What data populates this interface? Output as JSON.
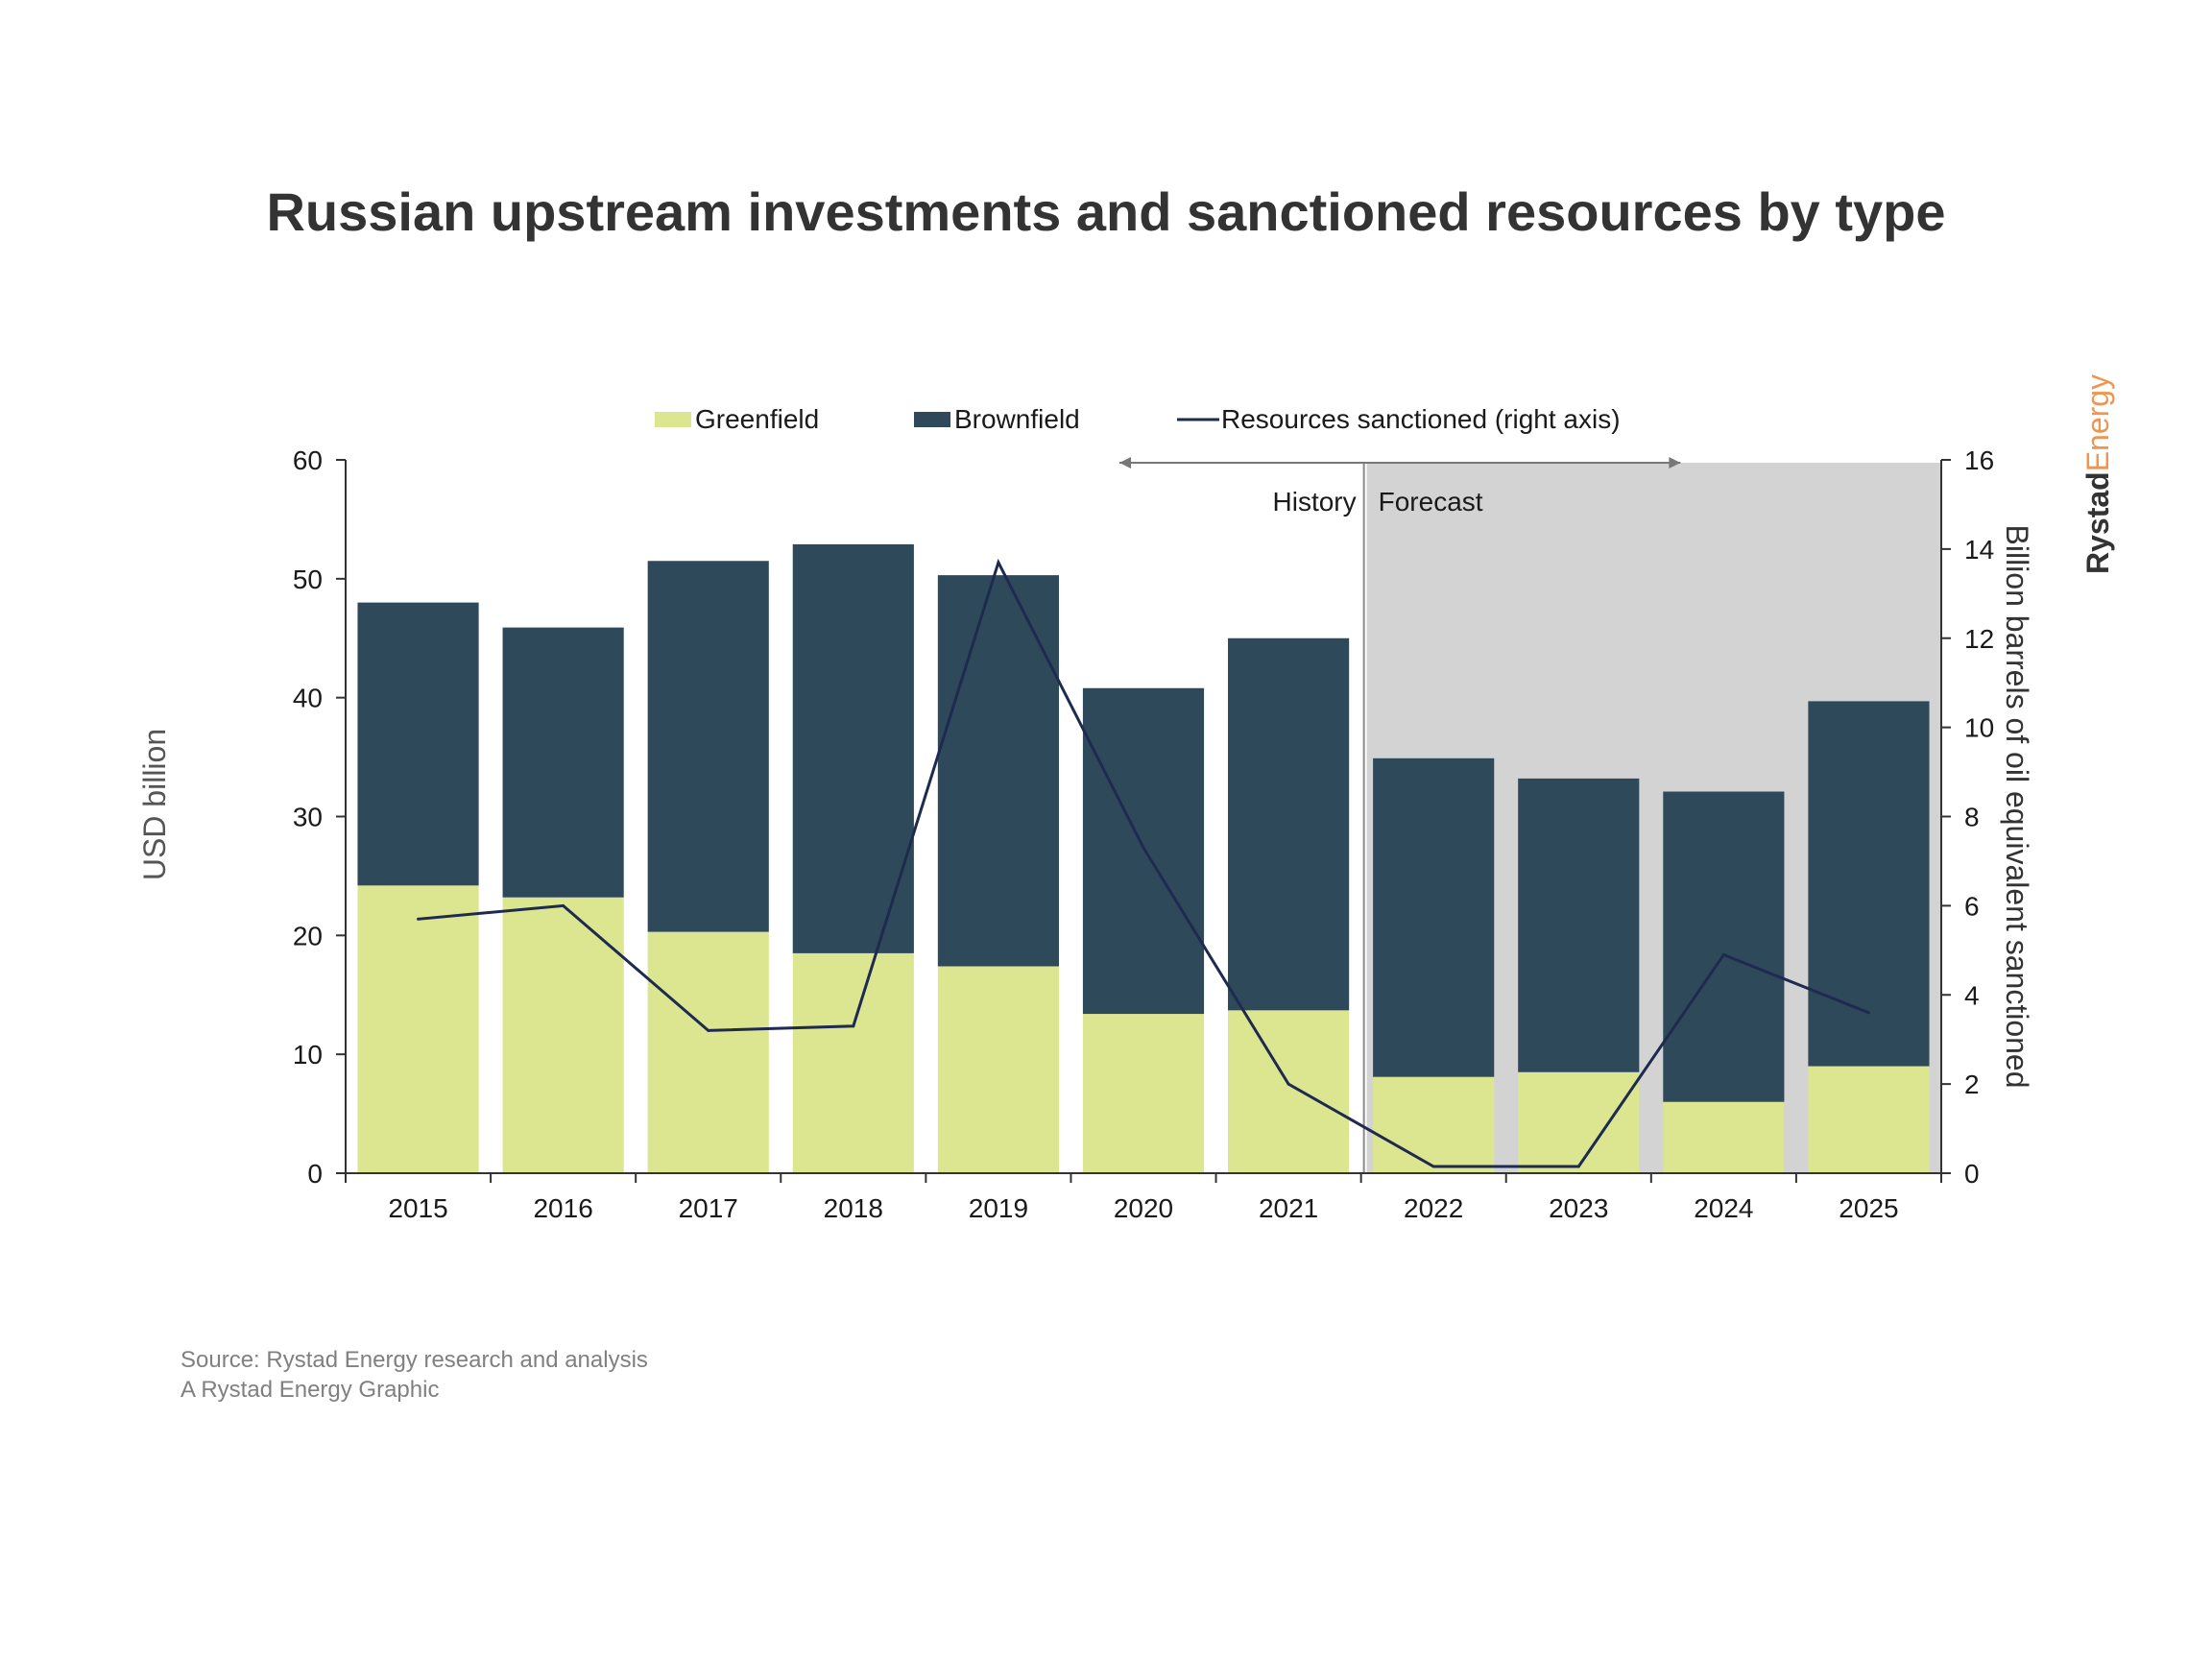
{
  "title": "Russian upstream investments and sanctioned resources by type",
  "legend": {
    "greenfield": "Greenfield",
    "brownfield": "Brownfield",
    "line": "Resources sanctioned (right axis)"
  },
  "period": {
    "history": "History",
    "forecast": "Forecast"
  },
  "source": {
    "line1": "Source: Rystad Energy research and analysis",
    "line2": "A Rystad Energy Graphic"
  },
  "brand": {
    "part1": "Rystad",
    "part2": "Energy",
    "color1": "#333333",
    "color2": "#f0944f"
  },
  "colors": {
    "greenfield": "#dce58f",
    "brownfield": "#2e4a5a",
    "line": "#1e2a4f",
    "forecast_shade": "#d3d3d3",
    "title": "#333333"
  },
  "chart_data": {
    "type": "bar",
    "stacked": true,
    "title": "Russian upstream investments and sanctioned resources by type",
    "categories": [
      "2015",
      "2016",
      "2017",
      "2018",
      "2019",
      "2020",
      "2021",
      "2022",
      "2023",
      "2024",
      "2025"
    ],
    "series": [
      {
        "name": "Greenfield",
        "type": "bar",
        "axis": "left",
        "values": [
          24.2,
          23.2,
          20.3,
          18.5,
          17.4,
          13.4,
          13.7,
          8.1,
          8.5,
          6.0,
          9.0
        ]
      },
      {
        "name": "Brownfield",
        "type": "bar",
        "axis": "left",
        "values": [
          23.8,
          22.7,
          31.2,
          34.4,
          32.9,
          27.4,
          31.3,
          26.8,
          24.7,
          26.1,
          30.7
        ]
      },
      {
        "name": "Resources sanctioned (right axis)",
        "type": "line",
        "axis": "right",
        "values": [
          5.7,
          6.0,
          3.2,
          3.3,
          13.7,
          7.3,
          2.0,
          0.15,
          0.15,
          4.9,
          3.6
        ]
      }
    ],
    "ylabel": "USD billion",
    "ylabel_right": "Billion barrels of oil equivalent sanctioned",
    "ylim": [
      0,
      60
    ],
    "ylim_right": [
      0,
      16
    ],
    "yticks": [
      0,
      10,
      20,
      30,
      40,
      50,
      60
    ],
    "yticks_right": [
      0,
      2,
      4,
      6,
      8,
      10,
      12,
      14,
      16
    ],
    "forecast_start": "2022",
    "grid": false,
    "legend_position": "top"
  }
}
